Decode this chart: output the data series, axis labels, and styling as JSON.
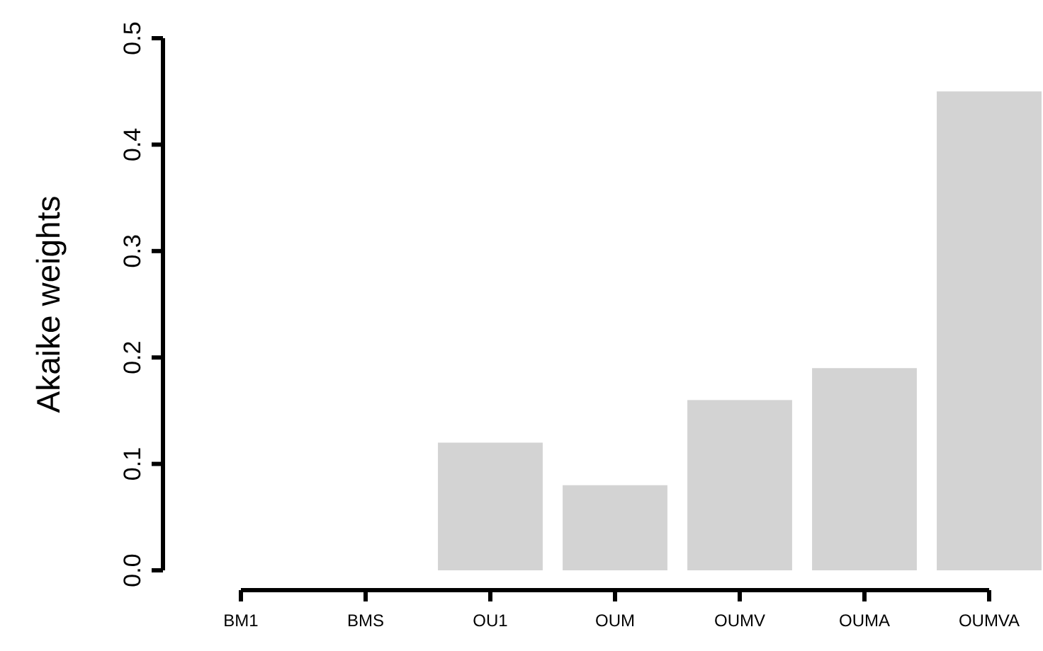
{
  "chart_data": {
    "type": "bar",
    "ylabel": "Akaike weights",
    "categories": [
      "BM1",
      "BMS",
      "OU1",
      "OUM",
      "OUMV",
      "OUMA",
      "OUMVA"
    ],
    "values": [
      0,
      0,
      0.12,
      0.08,
      0.16,
      0.19,
      0.45
    ],
    "color": "#d3d3d3",
    "ylim": [
      0,
      0.5
    ],
    "yticks": [
      {
        "value": 0,
        "label": "0.0"
      },
      {
        "value": 0.1,
        "label": "0.1"
      },
      {
        "value": 0.2,
        "label": "0.2"
      },
      {
        "value": 0.3,
        "label": "0.3"
      },
      {
        "value": 0.4,
        "label": "0.4"
      },
      {
        "value": 0.5,
        "label": "0.5"
      }
    ],
    "grid": false
  }
}
